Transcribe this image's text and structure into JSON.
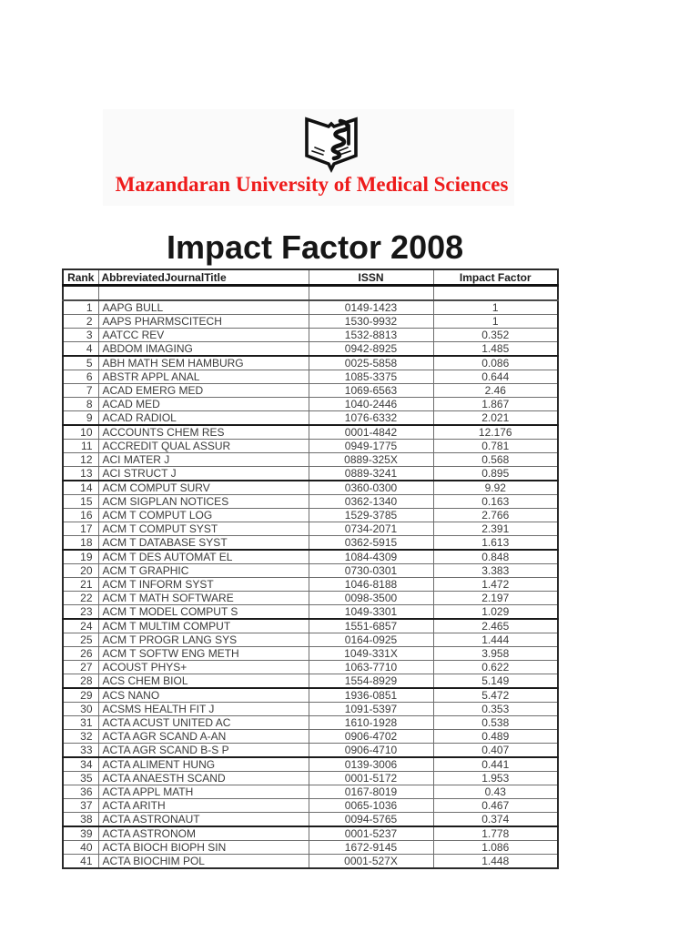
{
  "header": {
    "logo_icon": "open-book-calligraphy-emblem",
    "university_name": "Mazandaran University of Medical Sciences",
    "university_name_color": "#ee1c1c"
  },
  "title": "Impact Factor 2008",
  "table": {
    "columns": [
      "Rank",
      "AbbreviatedJournalTitle",
      "ISSN",
      "Impact Factor"
    ],
    "rows": [
      [
        "",
        "",
        "",
        ""
      ],
      [
        1,
        "AAPG BULL",
        "0149-1423",
        "1"
      ],
      [
        2,
        "AAPS PHARMSCITECH",
        "1530-9932",
        "1"
      ],
      [
        3,
        "AATCC REV",
        "1532-8813",
        "0.352"
      ],
      [
        4,
        "ABDOM IMAGING",
        "0942-8925",
        "1.485"
      ],
      [
        5,
        "ABH MATH SEM HAMBURG",
        "0025-5858",
        "0.086"
      ],
      [
        6,
        "ABSTR APPL ANAL",
        "1085-3375",
        "0.644"
      ],
      [
        7,
        "ACAD EMERG MED",
        "1069-6563",
        "2.46"
      ],
      [
        8,
        "ACAD MED",
        "1040-2446",
        "1.867"
      ],
      [
        9,
        "ACAD RADIOL",
        "1076-6332",
        "2.021"
      ],
      [
        10,
        "ACCOUNTS CHEM RES",
        "0001-4842",
        "12.176"
      ],
      [
        11,
        "ACCREDIT QUAL ASSUR",
        "0949-1775",
        "0.781"
      ],
      [
        12,
        "ACI MATER J",
        "0889-325X",
        "0.568"
      ],
      [
        13,
        "ACI STRUCT J",
        "0889-3241",
        "0.895"
      ],
      [
        14,
        "ACM COMPUT SURV",
        "0360-0300",
        "9.92"
      ],
      [
        15,
        "ACM SIGPLAN NOTICES",
        "0362-1340",
        "0.163"
      ],
      [
        16,
        "ACM T COMPUT LOG",
        "1529-3785",
        "2.766"
      ],
      [
        17,
        "ACM T COMPUT SYST",
        "0734-2071",
        "2.391"
      ],
      [
        18,
        "ACM T DATABASE SYST",
        "0362-5915",
        "1.613"
      ],
      [
        19,
        "ACM T DES AUTOMAT EL",
        "1084-4309",
        "0.848"
      ],
      [
        20,
        "ACM T GRAPHIC",
        "0730-0301",
        "3.383"
      ],
      [
        21,
        "ACM T INFORM SYST",
        "1046-8188",
        "1.472"
      ],
      [
        22,
        "ACM T MATH SOFTWARE",
        "0098-3500",
        "2.197"
      ],
      [
        23,
        "ACM T MODEL COMPUT S",
        "1049-3301",
        "1.029"
      ],
      [
        24,
        "ACM T MULTIM COMPUT",
        "1551-6857",
        "2.465"
      ],
      [
        25,
        "ACM T PROGR LANG SYS",
        "0164-0925",
        "1.444"
      ],
      [
        26,
        "ACM T SOFTW ENG METH",
        "1049-331X",
        "3.958"
      ],
      [
        27,
        "ACOUST PHYS+",
        "1063-7710",
        "0.622"
      ],
      [
        28,
        "ACS CHEM BIOL",
        "1554-8929",
        "5.149"
      ],
      [
        29,
        "ACS NANO",
        "1936-0851",
        "5.472"
      ],
      [
        30,
        "ACSMS HEALTH FIT J",
        "1091-5397",
        "0.353"
      ],
      [
        31,
        "ACTA ACUST UNITED AC",
        "1610-1928",
        "0.538"
      ],
      [
        32,
        "ACTA AGR SCAND A-AN",
        "0906-4702",
        "0.489"
      ],
      [
        33,
        "ACTA AGR SCAND B-S P",
        "0906-4710",
        "0.407"
      ],
      [
        34,
        "ACTA ALIMENT HUNG",
        "0139-3006",
        "0.441"
      ],
      [
        35,
        "ACTA ANAESTH SCAND",
        "0001-5172",
        "1.953"
      ],
      [
        36,
        "ACTA APPL MATH",
        "0167-8019",
        "0.43"
      ],
      [
        37,
        "ACTA ARITH",
        "0065-1036",
        "0.467"
      ],
      [
        38,
        "ACTA ASTRONAUT",
        "0094-5765",
        "0.374"
      ],
      [
        39,
        "ACTA ASTRONOM",
        "0001-5237",
        "1.778"
      ],
      [
        40,
        "ACTA BIOCH BIOPH SIN",
        "1672-9145",
        "1.086"
      ],
      [
        41,
        "ACTA BIOCHIM POL",
        "0001-527X",
        "1.448"
      ]
    ]
  }
}
